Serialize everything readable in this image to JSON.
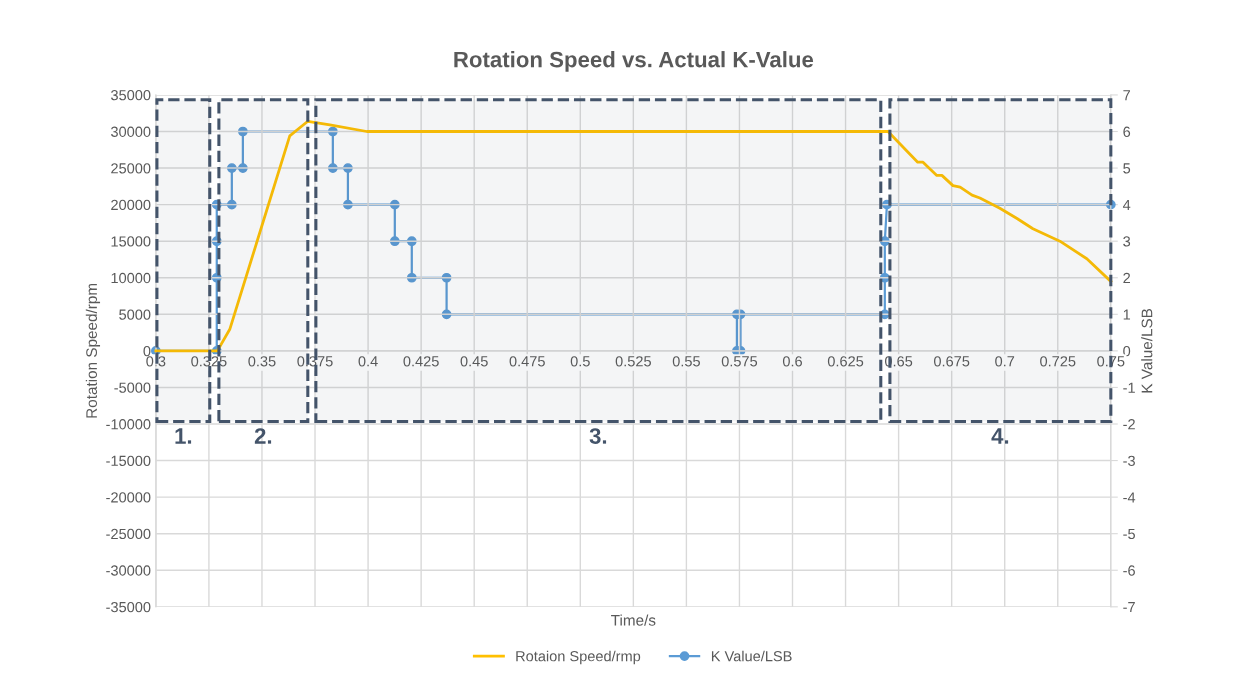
{
  "chart_data": {
    "type": "line",
    "title": "Rotation Speed vs. Actual K-Value",
    "xlabel": "Time/s",
    "ylabel": "Rotation Speed/rpm",
    "y2label": "K Value/LSB",
    "xlim": [
      0.3,
      0.75
    ],
    "xticks": [
      0.3,
      0.325,
      0.35,
      0.375,
      0.4,
      0.425,
      0.45,
      0.475,
      0.5,
      0.525,
      0.55,
      0.575,
      0.6,
      0.625,
      0.65,
      0.675,
      0.7,
      0.725,
      0.75
    ],
    "ylim": [
      -35000,
      35000
    ],
    "yticks": [
      -35000,
      -30000,
      -25000,
      -20000,
      -15000,
      -10000,
      -5000,
      0,
      5000,
      10000,
      15000,
      20000,
      25000,
      30000,
      35000
    ],
    "y2lim": [
      -7,
      7
    ],
    "y2ticks": [
      -7,
      -6,
      -5,
      -4,
      -3,
      -2,
      -1,
      0,
      1,
      2,
      3,
      4,
      5,
      6,
      7
    ],
    "grid": true,
    "legend": "bottom",
    "series": [
      {
        "name": "Rotaion Speed/rmp",
        "color": "#ffc000",
        "marker": "none",
        "x": [
          0.3,
          0.329,
          0.3349,
          0.3631,
          0.3716,
          0.382,
          0.3994,
          0.645,
          0.659,
          0.6615,
          0.668,
          0.6704,
          0.6756,
          0.679,
          0.6846,
          0.6883,
          0.6977,
          0.7058,
          0.7133,
          0.726,
          0.7387,
          0.75
        ],
        "values": [
          0,
          0,
          3000,
          29400,
          31400,
          30900,
          30000,
          30000,
          25800,
          25800,
          24000,
          24000,
          22600,
          22400,
          21300,
          20900,
          19500,
          18100,
          16700,
          15000,
          12600,
          9500
        ]
      },
      {
        "name": "K Value/LSB",
        "color": "#5b9bd5",
        "marker": "circle",
        "axis": "y2",
        "x": [
          0.3,
          0.3287,
          0.3287,
          0.3287,
          0.3287,
          0.3358,
          0.3358,
          0.341,
          0.341,
          0.3834,
          0.3834,
          0.3905,
          0.3905,
          0.4126,
          0.4126,
          0.4206,
          0.4206,
          0.437,
          0.437,
          0.5738,
          0.5738,
          0.5755,
          0.5755,
          0.6435,
          0.6435,
          0.6435,
          0.6445,
          0.75
        ],
        "values": [
          0,
          0,
          2,
          3,
          4,
          4,
          5,
          5,
          6,
          6,
          5,
          5,
          4,
          4,
          3,
          3,
          2,
          2,
          1,
          1,
          0,
          0,
          1,
          1,
          2,
          3,
          4,
          4
        ]
      }
    ],
    "bands": [
      {
        "axis": "x",
        "from": 0.3005,
        "to": 0.3254,
        "label": "1.",
        "color": "#44546a"
      },
      {
        "axis": "x",
        "from": 0.3297,
        "to": 0.3716,
        "label": "2.",
        "color": "#44546a"
      },
      {
        "axis": "x",
        "from": 0.3754,
        "to": 0.6416,
        "label": "3.",
        "color": "#44546a"
      },
      {
        "axis": "x",
        "from": 0.6459,
        "to": 0.75,
        "label": "4.",
        "color": "#44546a"
      }
    ]
  }
}
